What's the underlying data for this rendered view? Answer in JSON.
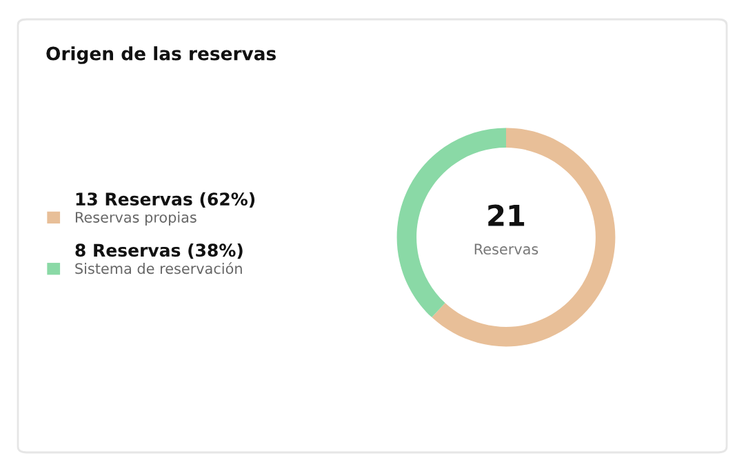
{
  "chart_data": {
    "type": "donut",
    "title": "Origen de las reservas",
    "categories": [
      "Reservas propias",
      "Sistema de reservación"
    ],
    "values": [
      13,
      8
    ],
    "colors": [
      "#e8bf98",
      "#8ad9a6"
    ],
    "value_labels": [
      "13 Reservas (62%)",
      "8 Reservas (38%)"
    ],
    "annotations": [
      "21",
      "Reservas"
    ],
    "legend": "left"
  }
}
